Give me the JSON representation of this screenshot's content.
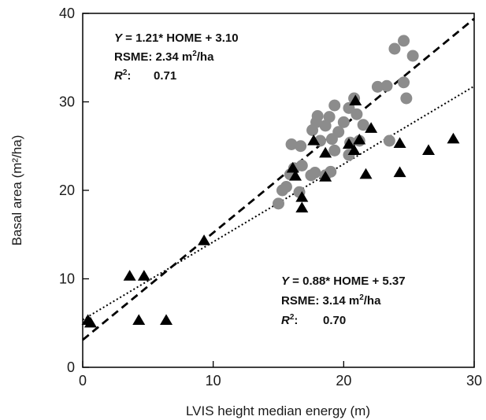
{
  "chart_data": {
    "type": "scatter",
    "xlabel": "LVIS height median energy (m)",
    "ylabel": "Basal area (m²/ha)",
    "xlim": [
      0,
      30
    ],
    "ylim": [
      0,
      40
    ],
    "xticks": [
      0,
      10,
      20,
      30
    ],
    "yticks": [
      0,
      10,
      20,
      30,
      40
    ],
    "grid": false,
    "legend": "none",
    "series": [
      {
        "marker": "circle",
        "color": "#8c8c8c",
        "points": [
          [
            15.0,
            18.5
          ],
          [
            15.3,
            20.0
          ],
          [
            15.6,
            20.4
          ],
          [
            15.9,
            21.8
          ],
          [
            16.2,
            22.5
          ],
          [
            16.0,
            25.2
          ],
          [
            16.7,
            25.0
          ],
          [
            16.8,
            22.8
          ],
          [
            16.6,
            19.8
          ],
          [
            17.5,
            21.7
          ],
          [
            17.8,
            22.0
          ],
          [
            17.6,
            26.8
          ],
          [
            17.9,
            27.7
          ],
          [
            18.2,
            25.6
          ],
          [
            18.0,
            28.4
          ],
          [
            18.6,
            27.3
          ],
          [
            18.9,
            28.3
          ],
          [
            19.1,
            25.8
          ],
          [
            19.3,
            24.5
          ],
          [
            19.6,
            26.6
          ],
          [
            19.3,
            29.6
          ],
          [
            18.6,
            21.7
          ],
          [
            19.0,
            22.1
          ],
          [
            20.0,
            27.7
          ],
          [
            20.4,
            29.3
          ],
          [
            20.8,
            30.4
          ],
          [
            20.5,
            25.4
          ],
          [
            21.2,
            25.6
          ],
          [
            21.5,
            27.4
          ],
          [
            20.4,
            24.0
          ],
          [
            21.0,
            28.6
          ],
          [
            22.6,
            31.7
          ],
          [
            23.3,
            31.8
          ],
          [
            23.5,
            25.6
          ],
          [
            23.9,
            36.0
          ],
          [
            24.6,
            36.9
          ],
          [
            24.8,
            30.4
          ],
          [
            24.6,
            32.2
          ],
          [
            25.3,
            35.2
          ]
        ]
      },
      {
        "marker": "triangle",
        "color": "#000000",
        "points": [
          [
            0.4,
            5.3
          ],
          [
            0.6,
            5.0
          ],
          [
            3.6,
            10.3
          ],
          [
            4.3,
            5.3
          ],
          [
            4.7,
            10.3
          ],
          [
            6.4,
            5.3
          ],
          [
            9.3,
            14.3
          ],
          [
            16.1,
            22.5
          ],
          [
            16.3,
            21.6
          ],
          [
            16.8,
            19.2
          ],
          [
            16.8,
            18.0
          ],
          [
            17.7,
            25.6
          ],
          [
            18.6,
            21.5
          ],
          [
            18.6,
            24.2
          ],
          [
            20.4,
            25.2
          ],
          [
            20.8,
            24.5
          ],
          [
            20.9,
            30.1
          ],
          [
            21.2,
            25.7
          ],
          [
            21.7,
            21.8
          ],
          [
            22.1,
            27.0
          ],
          [
            24.3,
            25.3
          ],
          [
            24.3,
            22.0
          ],
          [
            26.5,
            24.5
          ],
          [
            28.4,
            25.8
          ]
        ]
      }
    ],
    "fit_lines": [
      {
        "slope": 1.21,
        "intercept": 3.1,
        "style": "dashed"
      },
      {
        "slope": 0.88,
        "intercept": 5.37,
        "style": "dotted"
      }
    ],
    "annotations": {
      "upper": {
        "eq_var": "Y",
        "eq_rest": " = 1.21* HOME + 3.10",
        "rsme_text": "RSME: 2.34 m",
        "rsme_sup": "2",
        "rsme_unit": "/ha",
        "r2_var": "R",
        "r2_sup": "2",
        "r2_colon": ":",
        "r2_value": "0.71"
      },
      "lower": {
        "eq_var": "Y",
        "eq_rest": " = 0.88* HOME + 5.37",
        "rsme_text": "RSME: 3.14 m",
        "rsme_sup": "2",
        "rsme_unit": "/ha",
        "r2_var": "R",
        "r2_sup": "2",
        "r2_colon": ":",
        "r2_value": "0.70"
      }
    }
  }
}
